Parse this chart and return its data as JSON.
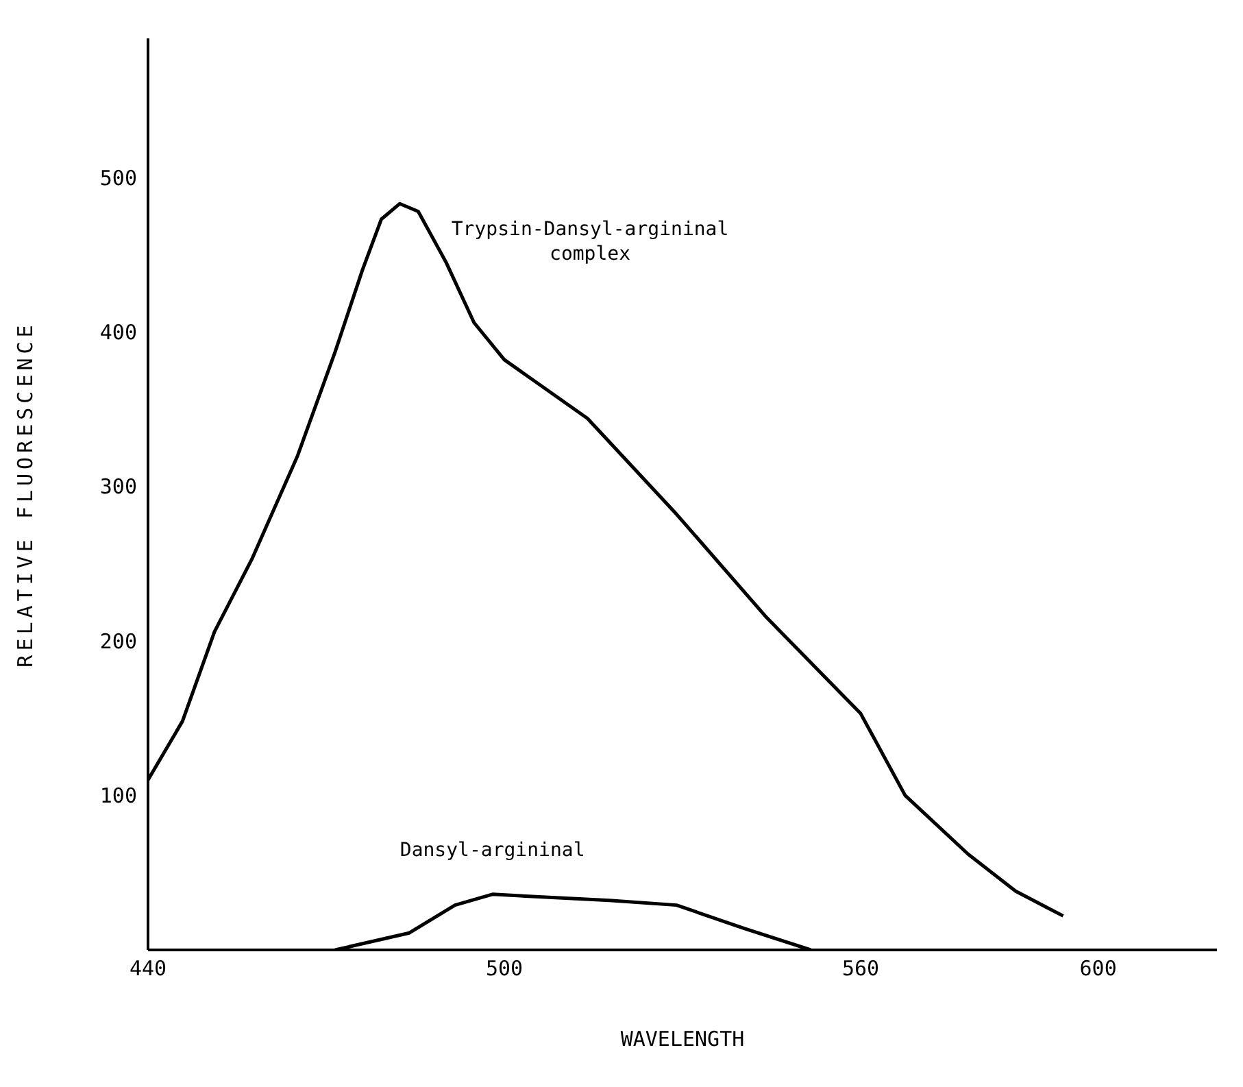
{
  "chart_data": {
    "type": "line",
    "xlabel": "WAVELENGTH",
    "ylabel": "RELATIVE FLUORESCENCE",
    "xlim": [
      440,
      620
    ],
    "xticks": [
      440,
      500,
      560,
      600
    ],
    "ylim": [
      0,
      590
    ],
    "yticks": [
      100,
      200,
      300,
      400,
      500
    ],
    "grid": false,
    "marker": "none",
    "line_style": "solid",
    "series": [
      {
        "name": "Trypsin-Dansyl-argininal complex",
        "color": "#000000",
        "x": [
          440,
          445.8,
          451.2,
          457.5,
          465.2,
          471.5,
          476.1,
          479.3,
          482.4,
          485.5,
          490.2,
          494.9,
          500,
          514,
          529,
          544.2,
          560,
          567.5,
          578.1,
          586.1,
          594.1
        ],
        "values": [
          110,
          148,
          206,
          253,
          320,
          387,
          440,
          473,
          483,
          478,
          445,
          406,
          382,
          344,
          282,
          215,
          153,
          100,
          62,
          38,
          22
        ]
      },
      {
        "name": "Dansyl-argininal",
        "color": "#000000",
        "x": [
          471.5,
          484,
          491.7,
          498,
          517.7,
          529,
          540.3,
          551.6
        ],
        "values": [
          0,
          11,
          29,
          36,
          32,
          29,
          14,
          0
        ]
      }
    ]
  }
}
